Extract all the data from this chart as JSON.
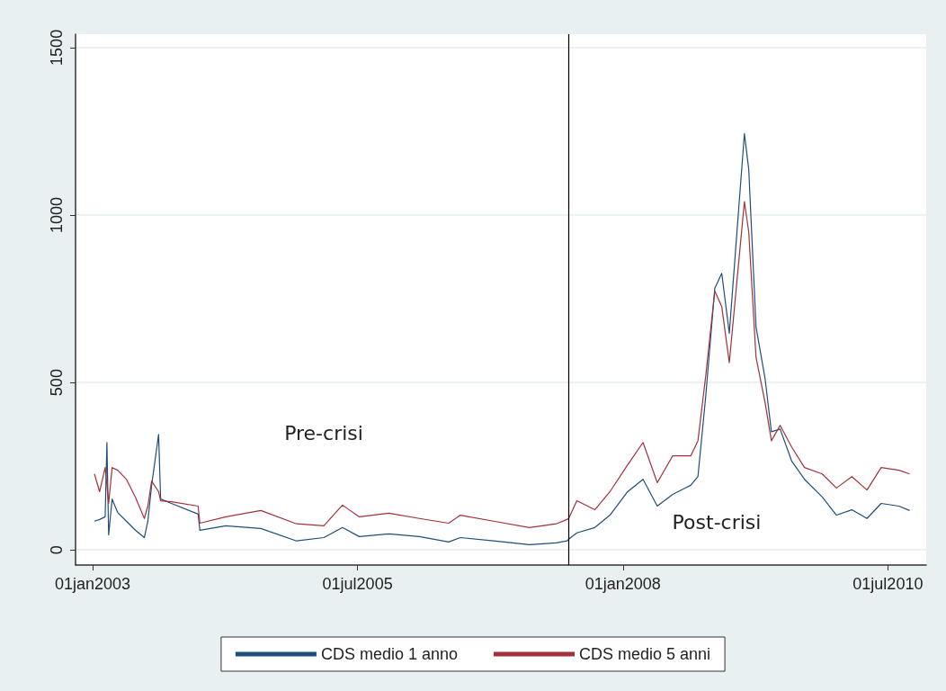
{
  "chart_data": {
    "type": "line",
    "xlim": [
      "2002-11-03",
      "2010-11-10"
    ],
    "ylim": [
      -45,
      1540
    ],
    "xticks": [
      {
        "value": "2003-01-01",
        "label": "01jan2003"
      },
      {
        "value": "2005-07-01",
        "label": "01jul2005"
      },
      {
        "value": "2008-01-01",
        "label": "01jan2008"
      },
      {
        "value": "2010-07-01",
        "label": "01jul2010"
      }
    ],
    "yticks": [
      0,
      500,
      1000,
      1500
    ],
    "grid": "y",
    "legend": "bottom",
    "line_style": "solid",
    "marker": "none",
    "ref_lines": [
      {
        "axis": "x",
        "value": "2007-06-28",
        "color": "#000000"
      }
    ],
    "annotations": [
      "Pre-crisi",
      "Post-crisi"
    ],
    "series": [
      {
        "name": "CDS medio 1 anno",
        "color": "#1f4e79",
        "x": [
          "2003-01-07",
          "2003-01-25",
          "2003-02-13",
          "2003-02-19",
          "2003-02-25",
          "2003-03-09",
          "2003-03-28",
          "2003-04-27",
          "2003-05-28",
          "2003-06-28",
          "2003-07-10",
          "2003-07-23",
          "2003-08-16",
          "2003-08-23",
          "2003-09-29",
          "2003-12-30",
          "2004-01-05",
          "2004-04-04",
          "2004-08-02",
          "2004-12-03",
          "2005-03-07",
          "2005-05-10",
          "2005-07-07",
          "2005-10-17",
          "2006-01-30",
          "2006-05-11",
          "2006-06-20",
          "2006-10-12",
          "2007-02-13",
          "2007-05-16",
          "2007-06-22",
          "2007-06-28",
          "2007-07-26",
          "2007-09-26",
          "2007-11-17",
          "2008-01-17",
          "2008-03-10",
          "2008-04-28",
          "2008-06-20",
          "2008-08-21",
          "2008-09-15",
          "2008-10-12",
          "2008-11-12",
          "2008-12-06",
          "2009-01-01",
          "2009-01-22",
          "2009-02-22",
          "2009-03-09",
          "2009-04-03",
          "2009-05-04",
          "2009-05-26",
          "2009-06-25",
          "2009-08-04",
          "2009-09-17",
          "2009-11-17",
          "2010-01-05",
          "2010-02-27",
          "2010-04-20",
          "2010-06-08",
          "2010-08-08",
          "2010-09-14"
        ],
        "values": [
          86,
          91,
          99,
          321,
          45,
          152,
          112,
          86,
          59,
          37,
          86,
          193,
          345,
          152,
          139,
          107,
          59,
          72,
          64,
          27,
          37,
          67,
          40,
          48,
          40,
          24,
          37,
          27,
          16,
          21,
          27,
          32,
          51,
          67,
          104,
          174,
          211,
          131,
          166,
          193,
          219,
          460,
          781,
          826,
          647,
          888,
          1243,
          1136,
          666,
          513,
          353,
          361,
          265,
          211,
          158,
          104,
          120,
          94,
          139,
          131,
          118
        ]
      },
      {
        "name": "CDS medio 5 anni",
        "color": "#a3313a",
        "x": [
          "2003-01-07",
          "2003-01-25",
          "2003-02-13",
          "2003-02-25",
          "2003-03-09",
          "2003-03-28",
          "2003-04-27",
          "2003-05-28",
          "2003-06-28",
          "2003-07-10",
          "2003-07-23",
          "2003-08-16",
          "2003-08-23",
          "2003-09-29",
          "2003-12-30",
          "2004-01-05",
          "2004-04-04",
          "2004-08-02",
          "2004-12-03",
          "2005-03-07",
          "2005-05-10",
          "2005-07-07",
          "2005-10-17",
          "2006-01-30",
          "2006-05-11",
          "2006-06-20",
          "2006-10-12",
          "2007-02-13",
          "2007-05-16",
          "2007-06-22",
          "2007-06-28",
          "2007-07-26",
          "2007-09-26",
          "2007-11-17",
          "2008-01-17",
          "2008-03-10",
          "2008-04-28",
          "2008-06-20",
          "2008-08-21",
          "2008-09-15",
          "2008-10-12",
          "2008-11-12",
          "2008-12-06",
          "2009-01-01",
          "2009-01-22",
          "2009-02-22",
          "2009-03-09",
          "2009-04-03",
          "2009-05-04",
          "2009-05-26",
          "2009-06-25",
          "2009-08-04",
          "2009-09-17",
          "2009-11-17",
          "2010-01-05",
          "2010-02-27",
          "2010-04-20",
          "2010-06-08",
          "2010-08-08",
          "2010-09-14"
        ],
        "values": [
          227,
          174,
          246,
          139,
          246,
          238,
          211,
          158,
          94,
          131,
          206,
          174,
          147,
          144,
          131,
          80,
          99,
          118,
          78,
          72,
          134,
          99,
          110,
          94,
          80,
          104,
          86,
          67,
          78,
          91,
          94,
          147,
          120,
          174,
          254,
          321,
          201,
          281,
          281,
          326,
          521,
          773,
          727,
          559,
          754,
          1040,
          949,
          575,
          441,
          326,
          372,
          307,
          246,
          227,
          185,
          219,
          179,
          246,
          238,
          227
        ]
      }
    ]
  }
}
